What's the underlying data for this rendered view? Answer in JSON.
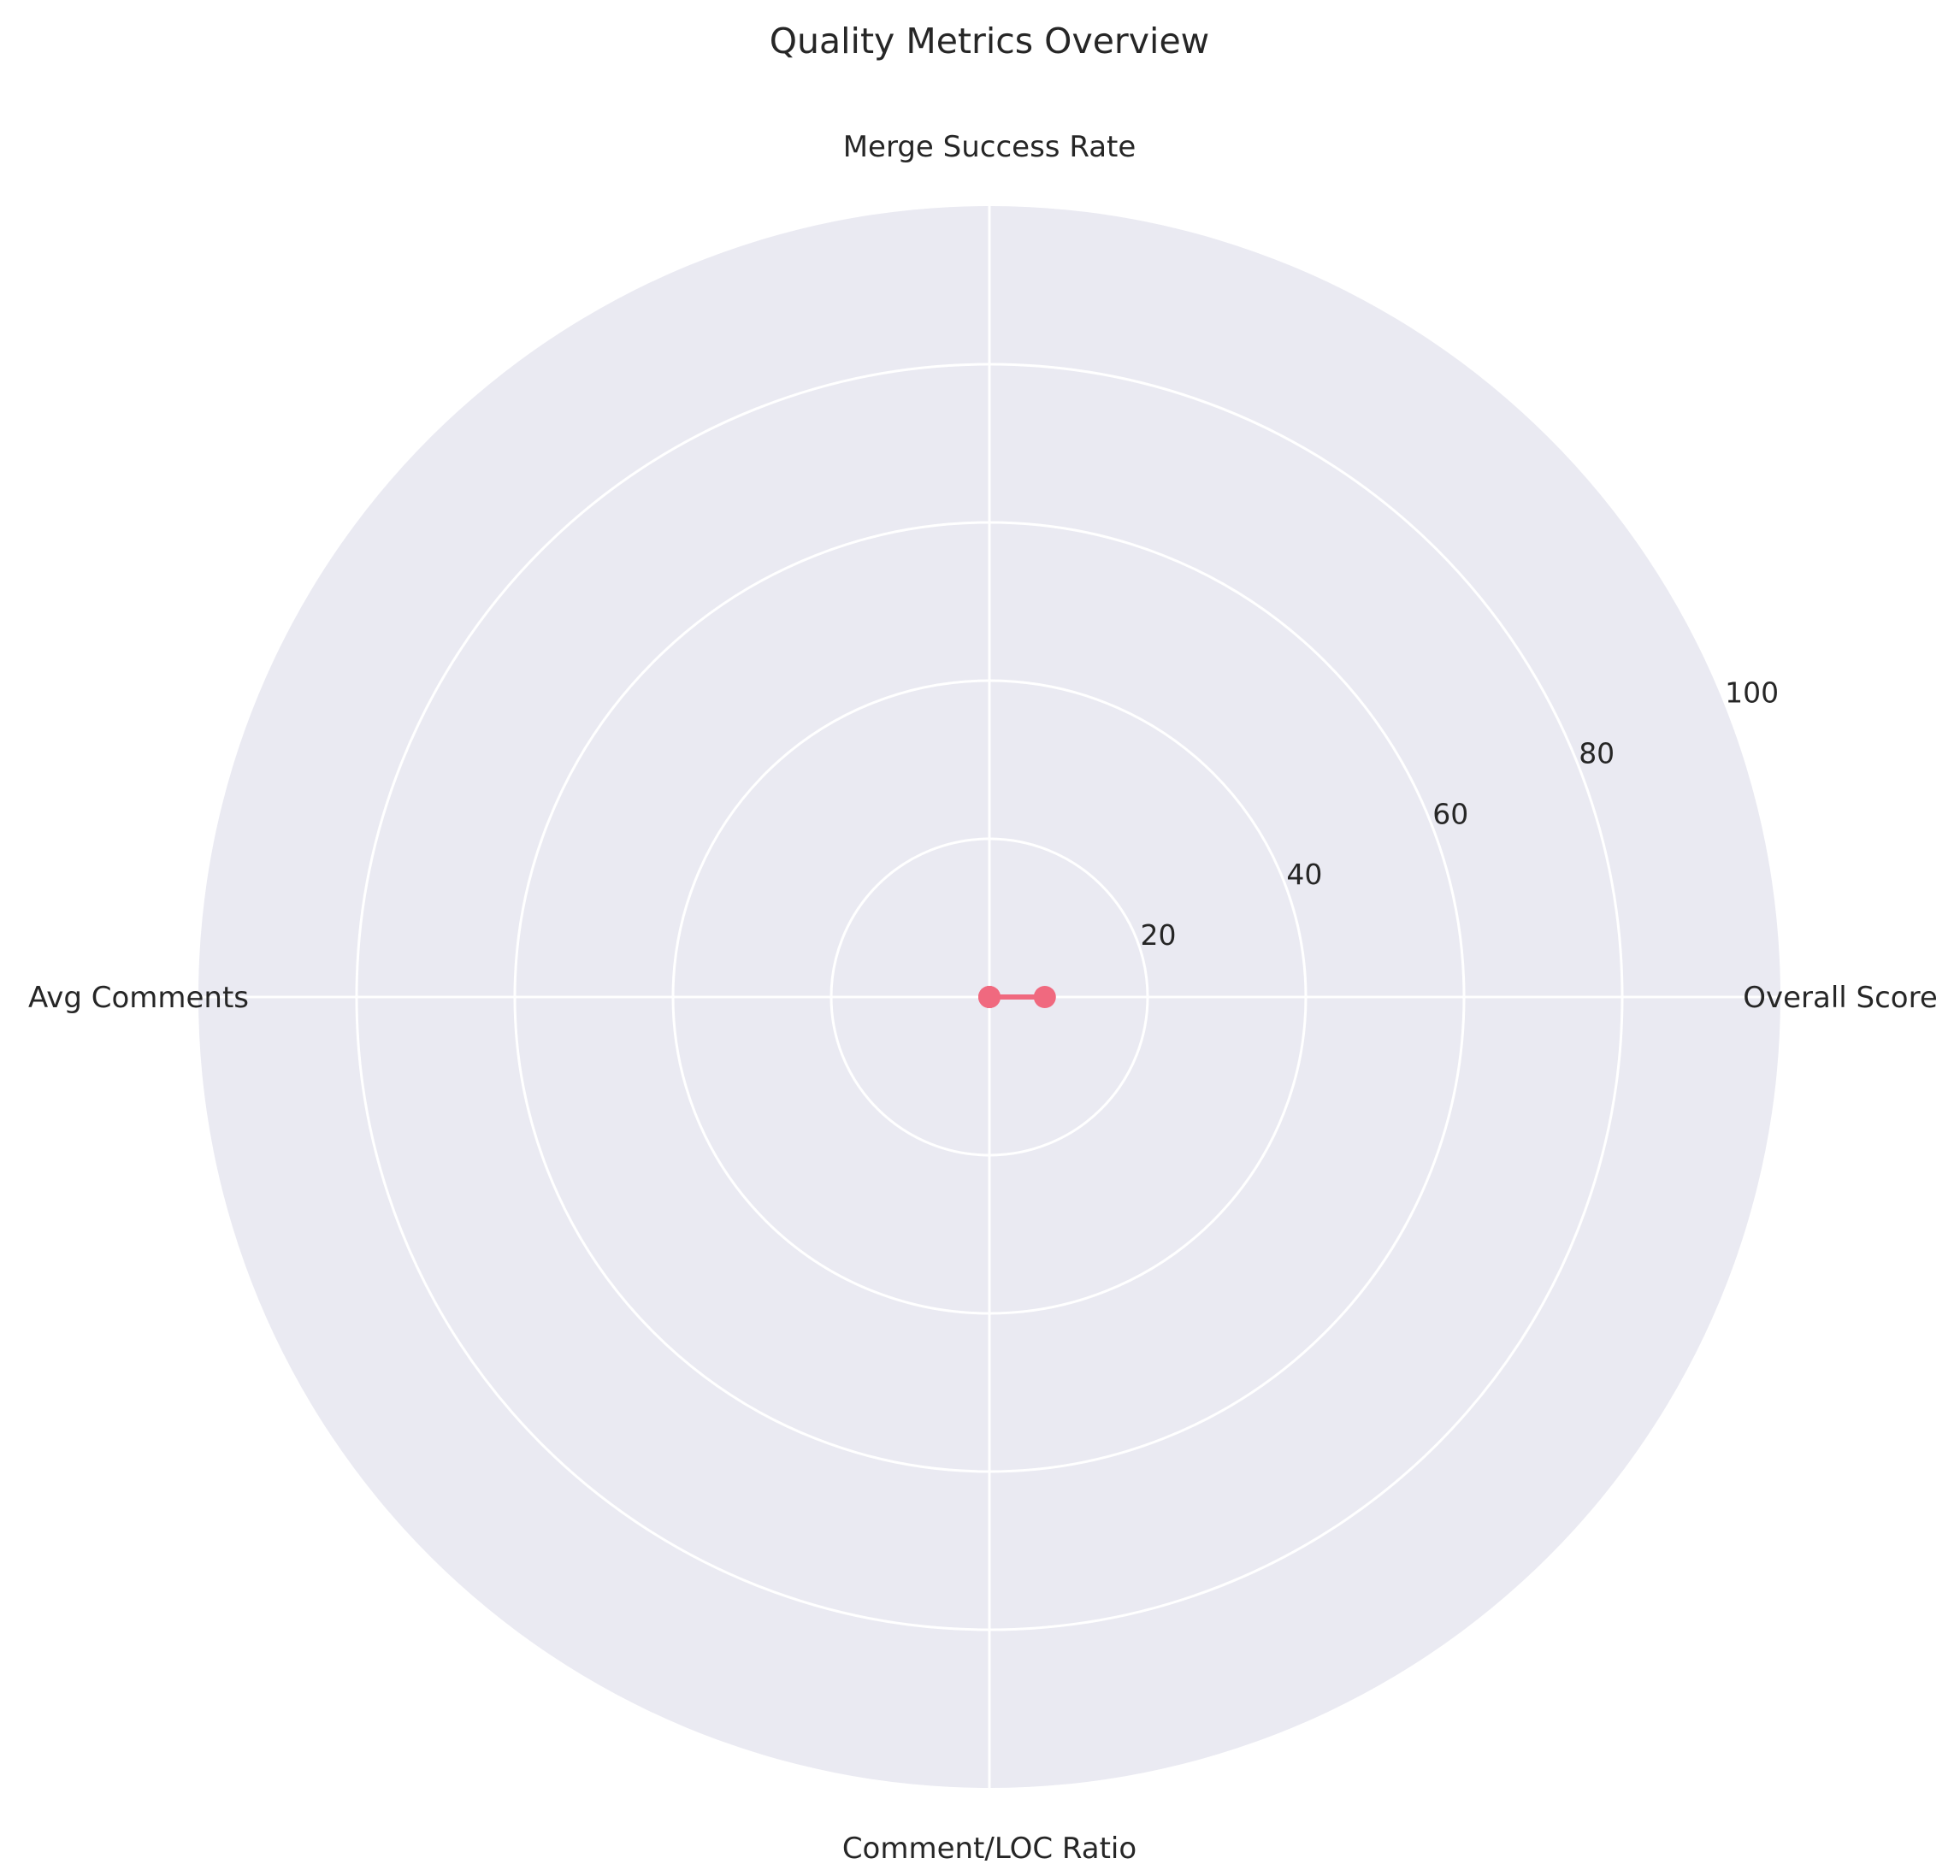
{
  "chart_data": {
    "type": "radar",
    "title": "Quality Metrics Overview",
    "axes": [
      "Overall Score",
      "Merge Success Rate",
      "Avg Comments",
      "Comment/LOC Ratio"
    ],
    "rlim": [
      0,
      100
    ],
    "rticks": [
      20,
      40,
      60,
      80,
      100
    ],
    "rtick_labels": [
      "20",
      "40",
      "60",
      "80",
      "100"
    ],
    "series": [
      {
        "values": [
          7,
          0,
          0,
          0
        ]
      }
    ],
    "grid": true,
    "legend": "none",
    "colors": {
      "background": "#EAEAF2",
      "grid": "#FFFFFF",
      "series": "#F0697F",
      "text": "#262626"
    }
  }
}
